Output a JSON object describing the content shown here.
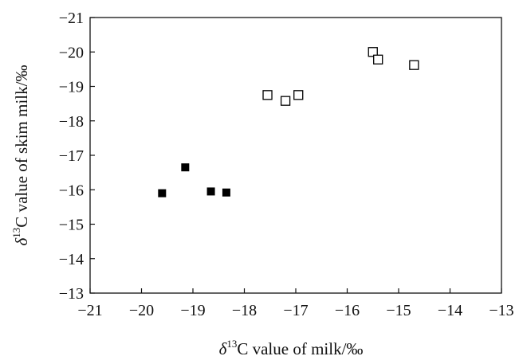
{
  "chart_data": {
    "type": "scatter",
    "xlabel_prefix": "δ",
    "xlabel_sup": "13",
    "xlabel_rest": "C value of milk/‰",
    "ylabel_prefix": "δ",
    "ylabel_sup": "13",
    "ylabel_rest": "C value of skim milk/‰",
    "xlim": [
      -21,
      -13
    ],
    "ylim": [
      -13,
      -21
    ],
    "x_ticks": [
      -21,
      -20,
      -19,
      -18,
      -17,
      -16,
      -15,
      -14,
      -13
    ],
    "x_tick_labels": [
      "−21",
      "−20",
      "−19",
      "−18",
      "−17",
      "−16",
      "−15",
      "−14",
      "−13"
    ],
    "y_ticks": [
      -21,
      -20,
      -19,
      -18,
      -17,
      -16,
      -15,
      -14,
      -13
    ],
    "y_tick_labels": [
      "−21",
      "−20",
      "−19",
      "−18",
      "−17",
      "−16",
      "−15",
      "−14",
      "−13"
    ],
    "grid": false,
    "series": [
      {
        "marker": "filled-square",
        "color": "#000000",
        "points": [
          {
            "x": -19.6,
            "y": -15.9
          },
          {
            "x": -19.15,
            "y": -16.65
          },
          {
            "x": -18.65,
            "y": -15.95
          },
          {
            "x": -18.35,
            "y": -15.92
          }
        ]
      },
      {
        "marker": "open-square",
        "color": "#000000",
        "points": [
          {
            "x": -17.55,
            "y": -18.75
          },
          {
            "x": -17.2,
            "y": -18.58
          },
          {
            "x": -16.95,
            "y": -18.75
          },
          {
            "x": -15.5,
            "y": -20.0
          },
          {
            "x": -15.4,
            "y": -19.78
          },
          {
            "x": -14.7,
            "y": -19.62
          }
        ]
      }
    ]
  }
}
